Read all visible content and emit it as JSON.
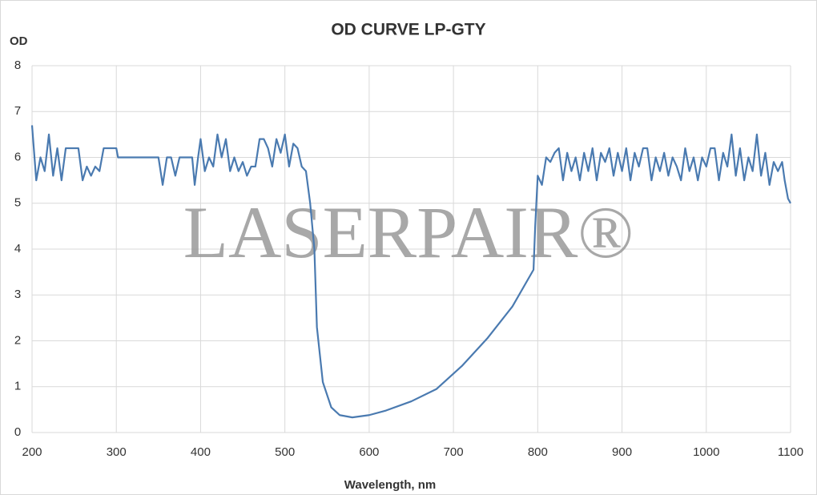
{
  "chart_data": {
    "type": "line",
    "title": "OD CURVE LP-GTY",
    "y_label": "OD",
    "x_label": "Wavelength, nm",
    "watermark": "LASERPAIR®",
    "x": [
      200,
      205,
      210,
      215,
      220,
      225,
      230,
      235,
      240,
      250,
      255,
      260,
      265,
      270,
      275,
      280,
      285,
      290,
      300,
      302,
      350,
      355,
      360,
      365,
      370,
      375,
      390,
      393,
      397,
      400,
      405,
      410,
      415,
      420,
      425,
      430,
      435,
      440,
      445,
      450,
      455,
      460,
      465,
      470,
      475,
      480,
      485,
      490,
      495,
      500,
      505,
      510,
      515,
      520,
      525,
      530,
      535,
      538,
      545,
      555,
      565,
      580,
      600,
      620,
      650,
      680,
      710,
      740,
      770,
      795,
      797,
      800,
      805,
      810,
      815,
      820,
      825,
      830,
      835,
      840,
      845,
      850,
      855,
      860,
      865,
      870,
      875,
      880,
      885,
      890,
      895,
      900,
      905,
      910,
      915,
      920,
      925,
      930,
      935,
      940,
      945,
      950,
      955,
      960,
      965,
      970,
      975,
      980,
      985,
      990,
      995,
      1000,
      1005,
      1010,
      1015,
      1020,
      1025,
      1030,
      1035,
      1040,
      1045,
      1050,
      1055,
      1060,
      1065,
      1070,
      1075,
      1080,
      1085,
      1090,
      1093,
      1097,
      1100
    ],
    "series": [
      {
        "name": "OD",
        "color": "#4a7ab0",
        "values": [
          6.7,
          5.5,
          6.0,
          5.7,
          6.5,
          5.6,
          6.2,
          5.5,
          6.2,
          6.2,
          6.2,
          5.5,
          5.8,
          5.6,
          5.8,
          5.7,
          6.2,
          6.2,
          6.2,
          6.0,
          6.0,
          5.4,
          6.0,
          6.0,
          5.6,
          6.0,
          6.0,
          5.4,
          6.0,
          6.4,
          5.7,
          6.0,
          5.8,
          6.5,
          6.0,
          6.4,
          5.7,
          6.0,
          5.7,
          5.9,
          5.6,
          5.8,
          5.8,
          6.4,
          6.4,
          6.2,
          5.8,
          6.4,
          6.1,
          6.5,
          5.8,
          6.3,
          6.2,
          5.8,
          5.7,
          5.0,
          4.0,
          2.3,
          1.1,
          0.55,
          0.38,
          0.33,
          0.38,
          0.48,
          0.68,
          0.95,
          1.45,
          2.05,
          2.75,
          3.55,
          4.5,
          5.6,
          5.4,
          6.0,
          5.9,
          6.1,
          6.2,
          5.5,
          6.1,
          5.7,
          6.0,
          5.5,
          6.1,
          5.7,
          6.2,
          5.5,
          6.1,
          5.9,
          6.2,
          5.6,
          6.1,
          5.7,
          6.2,
          5.5,
          6.1,
          5.8,
          6.2,
          6.2,
          5.5,
          6.0,
          5.7,
          6.1,
          5.6,
          6.0,
          5.8,
          5.5,
          6.2,
          5.7,
          6.0,
          5.5,
          6.0,
          5.8,
          6.2,
          6.2,
          5.5,
          6.1,
          5.8,
          6.5,
          5.6,
          6.2,
          5.5,
          6.0,
          5.7,
          6.5,
          5.6,
          6.1,
          5.4,
          5.9,
          5.7,
          5.9,
          5.5,
          5.1,
          5.0
        ]
      }
    ],
    "xlim": [
      200,
      1100
    ],
    "xticks": [
      200,
      300,
      400,
      500,
      600,
      700,
      800,
      900,
      1000,
      1100
    ],
    "ylim": [
      0,
      8
    ],
    "yticks": [
      0,
      1,
      2,
      3,
      4,
      5,
      6,
      7,
      8
    ],
    "grid": true
  }
}
